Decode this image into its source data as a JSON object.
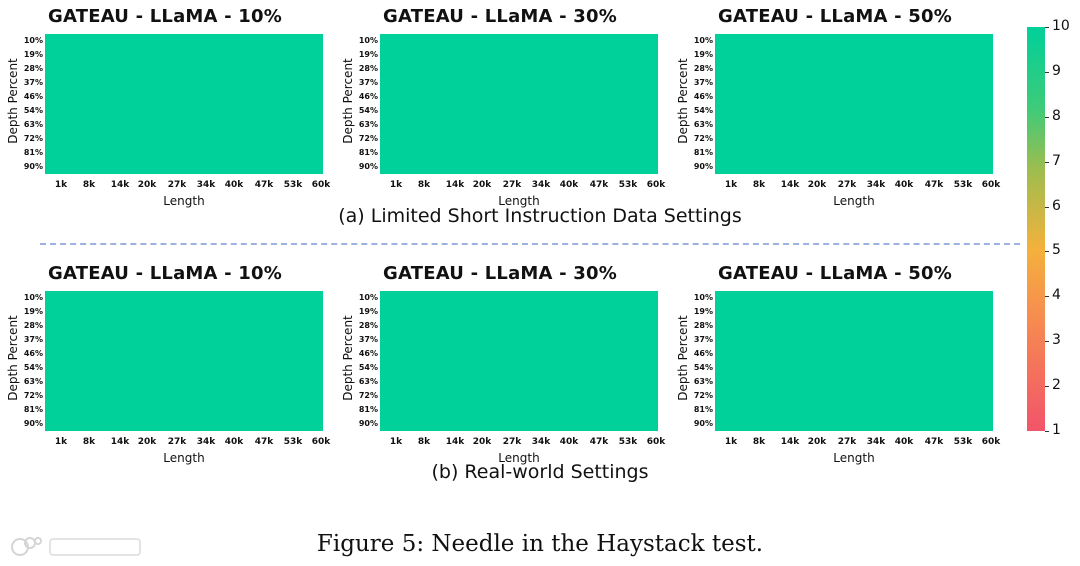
{
  "panels": [
    {
      "title": "GATEAU - LLaMA - 10%",
      "section": "a"
    },
    {
      "title": "GATEAU - LLaMA - 30%",
      "section": "a"
    },
    {
      "title": "GATEAU - LLaMA - 50%",
      "section": "a"
    },
    {
      "title": "GATEAU - LLaMA - 10%",
      "section": "b"
    },
    {
      "title": "GATEAU - LLaMA - 30%",
      "section": "b"
    },
    {
      "title": "GATEAU - LLaMA - 50%",
      "section": "b"
    }
  ],
  "captions": {
    "a": "(a) Limited Short Instruction Data Settings",
    "b": "(b) Real-world Settings"
  },
  "figure_caption": "Figure 5: Needle in the Haystack test.",
  "colors": {
    "cell_max": "#00d09a",
    "cell_min": "#f2546a"
  },
  "chart_data": {
    "type": "heatmap",
    "xlabel": "Length",
    "ylabel": "Depth Percent",
    "x": [
      "1k",
      "8k",
      "14k",
      "20k",
      "27k",
      "34k",
      "40k",
      "47k",
      "53k",
      "60k"
    ],
    "y": [
      "10%",
      "19%",
      "28%",
      "37%",
      "46%",
      "54%",
      "63%",
      "72%",
      "81%",
      "90%"
    ],
    "colorbar": {
      "min": 1,
      "max": 10,
      "ticks": [
        "1",
        "2",
        "3",
        "4",
        "5",
        "6",
        "7",
        "8",
        "9",
        "10"
      ]
    },
    "value_all_cells": 10
  }
}
